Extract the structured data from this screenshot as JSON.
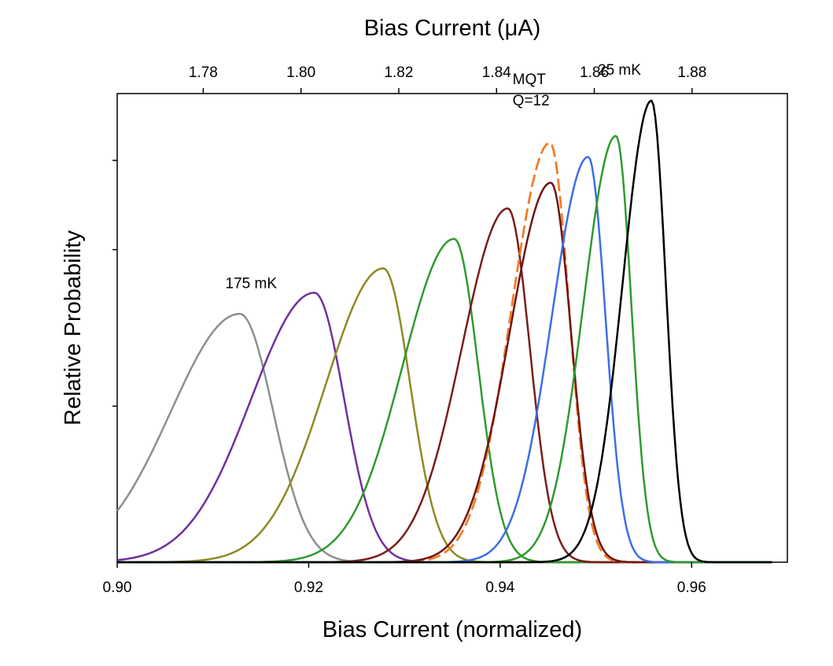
{
  "chart_data": {
    "type": "line",
    "title": "",
    "xlabel": "Bias Current  (normalized)",
    "x2label": "Bias Current  (μA)",
    "ylabel": "Relative Probability",
    "xlim": [
      0.9,
      0.97
    ],
    "ylim": [
      0,
      1.0
    ],
    "xticks": [
      0.9,
      0.92,
      0.94,
      0.96
    ],
    "xtick_labels": [
      "0.90",
      "0.92",
      "0.94",
      "0.96"
    ],
    "x2lim": [
      1.7624,
      1.8995
    ],
    "x2ticks": [
      1.78,
      1.8,
      1.82,
      1.84,
      1.86,
      1.88
    ],
    "x2tick_labels": [
      "1.78",
      "1.80",
      "1.82",
      "1.84",
      "1.86",
      "1.88"
    ],
    "yticks": [
      0.333,
      0.667
    ],
    "grid": false,
    "legend": "none",
    "series": [
      {
        "name": "175 mK",
        "color": "#8a9090",
        "dashed": false,
        "peak_x": 0.9128,
        "peak_y": 0.53,
        "width_left": 0.0072,
        "width_right": 0.0035
      },
      {
        "name": "series-2",
        "color": "#7030a0",
        "dashed": false,
        "peak_x": 0.9206,
        "peak_y": 0.575,
        "width_left": 0.0066,
        "width_right": 0.0031
      },
      {
        "name": "series-3",
        "color": "#8c8a22",
        "dashed": false,
        "peak_x": 0.9278,
        "peak_y": 0.627,
        "width_left": 0.006,
        "width_right": 0.0028
      },
      {
        "name": "series-4",
        "color": "#2e9a2e",
        "dashed": false,
        "peak_x": 0.9352,
        "peak_y": 0.69,
        "width_left": 0.0054,
        "width_right": 0.0025
      },
      {
        "name": "series-5",
        "color": "#7a1c1c",
        "dashed": false,
        "peak_x": 0.9408,
        "peak_y": 0.755,
        "width_left": 0.0048,
        "width_right": 0.0023
      },
      {
        "name": "MQT Q=12",
        "color": "#f07d28",
        "dashed": true,
        "peak_x": 0.9452,
        "peak_y": 0.895,
        "width_left": 0.004,
        "width_right": 0.002
      },
      {
        "name": "series-7",
        "color": "#6e1414",
        "dashed": false,
        "peak_x": 0.9453,
        "peak_y": 0.81,
        "width_left": 0.0043,
        "width_right": 0.0021
      },
      {
        "name": "series-8",
        "color": "#3c6ee6",
        "dashed": false,
        "peak_x": 0.9492,
        "peak_y": 0.865,
        "width_left": 0.0038,
        "width_right": 0.0018
      },
      {
        "name": "series-9",
        "color": "#2e9a2e",
        "dashed": false,
        "peak_x": 0.9521,
        "peak_y": 0.91,
        "width_left": 0.0034,
        "width_right": 0.0016
      },
      {
        "name": "25 mK",
        "color": "#000000",
        "dashed": false,
        "peak_x": 0.9558,
        "peak_y": 0.985,
        "width_left": 0.003,
        "width_right": 0.0015
      }
    ],
    "annotations": [
      {
        "text": "175 mK",
        "x": 0.9113,
        "y": 0.585
      },
      {
        "text": "MQT",
        "x": 0.9413,
        "y": 1.02
      },
      {
        "text": "Q=12",
        "x": 0.9413,
        "y": 0.975
      },
      {
        "text": "25 mK",
        "x": 0.9502,
        "y": 1.04
      }
    ]
  }
}
